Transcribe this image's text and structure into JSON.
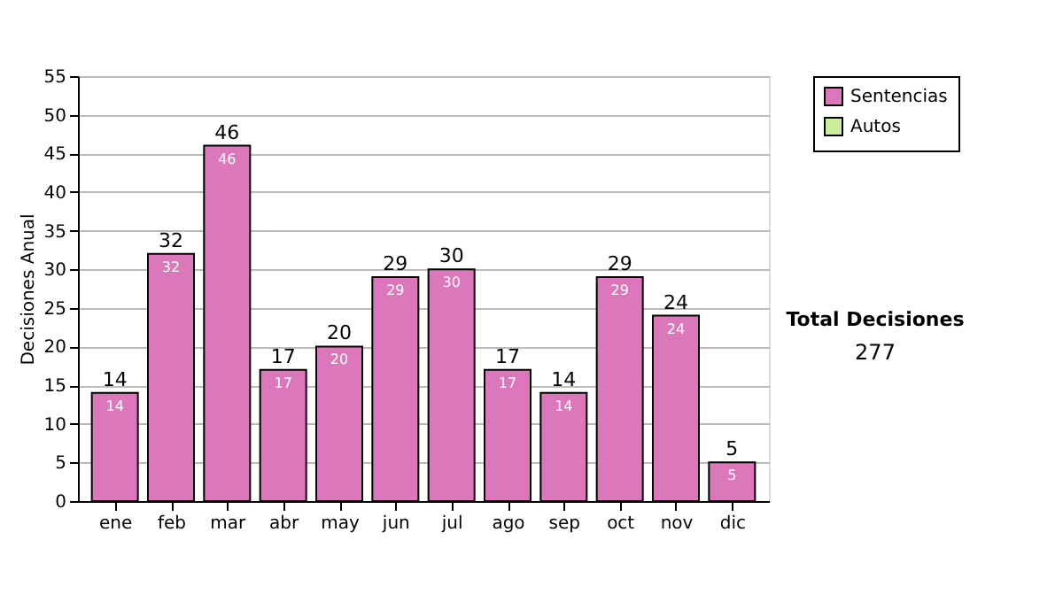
{
  "chart_data": {
    "type": "bar",
    "stacked": true,
    "ylabel": "Decisiones Anual",
    "categories": [
      "ene",
      "feb",
      "mar",
      "abr",
      "may",
      "jun",
      "jul",
      "ago",
      "sep",
      "oct",
      "nov",
      "dic"
    ],
    "series": [
      {
        "name": "Sentencias",
        "color": "#dd77bb",
        "values": [
          14,
          32,
          46,
          17,
          20,
          29,
          30,
          17,
          14,
          29,
          24,
          5
        ],
        "value_labels": [
          "14",
          "32",
          "46",
          "17",
          "20",
          "29",
          "30",
          "17",
          "14",
          "29",
          "24",
          "5"
        ]
      },
      {
        "name": "Autos",
        "color": "#ccee99",
        "values": [
          0,
          0,
          0,
          0,
          0,
          0,
          0,
          0,
          0,
          0,
          0,
          0
        ]
      }
    ],
    "totals": [
      "14",
      "32",
      "46",
      "17",
      "20",
      "29",
      "30",
      "17",
      "14",
      "29",
      "24",
      "5"
    ],
    "ylim": [
      0,
      55
    ],
    "yticks": [
      0,
      5,
      10,
      15,
      20,
      25,
      30,
      35,
      40,
      45,
      50,
      55
    ],
    "grid": "y",
    "legend": "right",
    "annotations": [
      "Total Decisiones",
      "277"
    ]
  }
}
